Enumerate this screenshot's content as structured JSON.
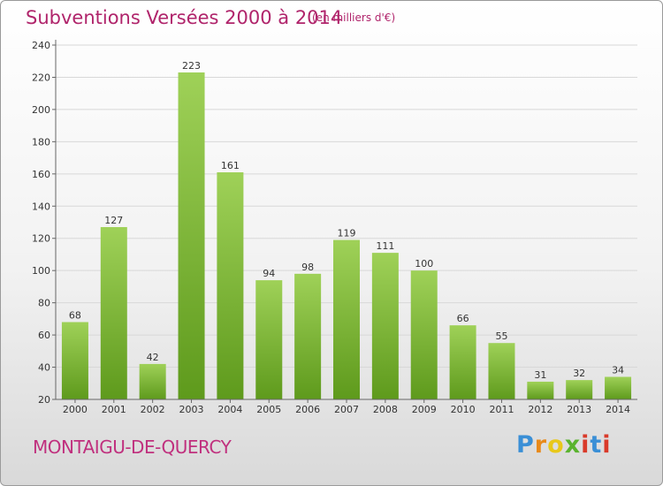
{
  "header": {
    "title": "Subventions Versées 2000 à 2014",
    "subtitle": "(en milliers d'€)"
  },
  "footer": {
    "commune": "MONTAIGU-DE-QUERCY",
    "logo": "Proxiti",
    "logo_colors": [
      "#3a8fd6",
      "#e88a1a",
      "#e8c81a",
      "#5ab32e",
      "#d93a2a",
      "#3a8fd6",
      "#d93a2a"
    ]
  },
  "colors": {
    "title": "#b0246b",
    "bar_top": "#9fd158",
    "bar_bottom": "#5e9a1c",
    "grid": "#d8d8d8",
    "axis": "#666666"
  },
  "chart_data": {
    "type": "bar",
    "title": "Subventions Versées 2000 à 2014",
    "subtitle": "(en milliers d'€)",
    "categories": [
      "2000",
      "2001",
      "2002",
      "2003",
      "2004",
      "2005",
      "2006",
      "2007",
      "2008",
      "2009",
      "2010",
      "2011",
      "2012",
      "2013",
      "2014"
    ],
    "values": [
      68,
      127,
      42,
      223,
      161,
      94,
      98,
      119,
      111,
      100,
      66,
      55,
      31,
      32,
      34
    ],
    "ylim": [
      20,
      240
    ],
    "yticks": [
      20,
      40,
      60,
      80,
      100,
      120,
      140,
      160,
      180,
      200,
      220,
      240
    ],
    "grid": true,
    "xlabel": "",
    "ylabel": ""
  }
}
